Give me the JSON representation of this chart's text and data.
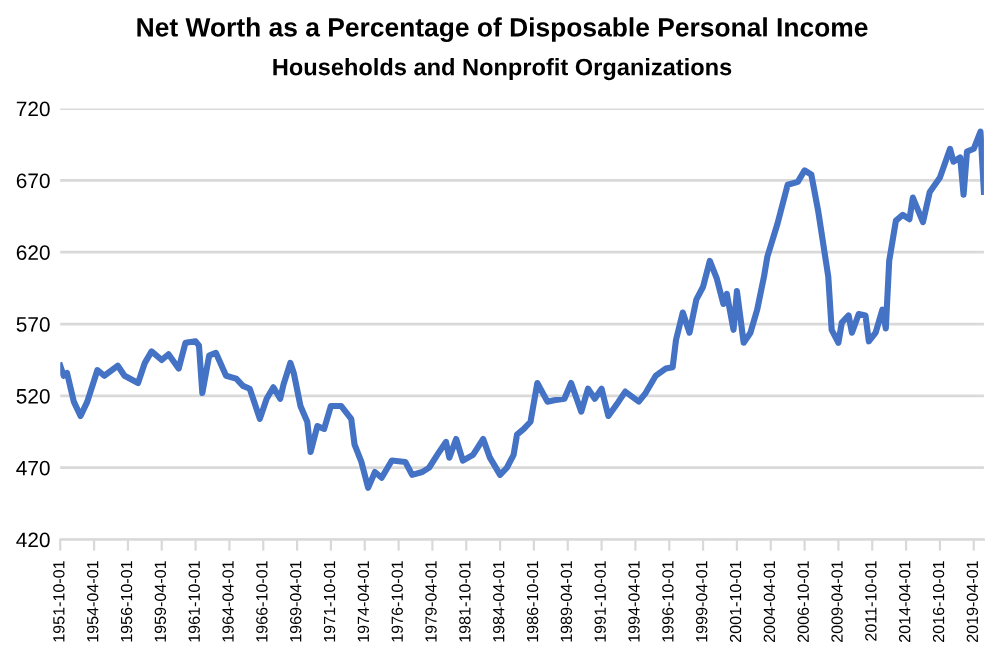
{
  "chart_data": {
    "type": "line",
    "title": "Net Worth as a Percentage of Disposable Personal Income",
    "subtitle": "Households and Nonprofit Organizations",
    "x": [
      "1951-10-01",
      "1952-01-01",
      "1952-04-01",
      "1952-10-01",
      "1953-04-01",
      "1953-10-01",
      "1954-07-01",
      "1955-01-01",
      "1956-01-01",
      "1956-07-01",
      "1957-07-01",
      "1958-01-01",
      "1958-07-01",
      "1959-04-01",
      "1959-10-01",
      "1960-07-01",
      "1961-01-01",
      "1961-10-01",
      "1962-01-01",
      "1962-04-01",
      "1962-10-01",
      "1963-04-01",
      "1964-01-01",
      "1964-10-01",
      "1965-04-01",
      "1965-10-01",
      "1966-01-01",
      "1966-07-01",
      "1967-01-01",
      "1967-07-01",
      "1968-01-01",
      "1968-04-01",
      "1968-10-01",
      "1969-01-01",
      "1969-07-01",
      "1970-01-01",
      "1970-04-01",
      "1970-10-01",
      "1971-04-01",
      "1971-10-01",
      "1972-07-01",
      "1973-04-01",
      "1973-07-01",
      "1974-01-01",
      "1974-07-01",
      "1975-01-01",
      "1975-07-01",
      "1976-04-01",
      "1977-04-01",
      "1977-10-01",
      "1978-07-01",
      "1979-01-01",
      "1979-10-01",
      "1980-04-01",
      "1980-07-01",
      "1981-01-01",
      "1981-07-01",
      "1982-04-01",
      "1983-01-01",
      "1983-07-01",
      "1984-04-01",
      "1984-10-01",
      "1985-04-01",
      "1985-07-01",
      "1986-01-01",
      "1986-07-01",
      "1987-01-01",
      "1987-10-01",
      "1988-04-01",
      "1989-01-01",
      "1989-07-01",
      "1990-04-01",
      "1990-10-01",
      "1991-04-01",
      "1991-10-01",
      "1992-04-01",
      "1993-01-01",
      "1993-07-01",
      "1994-07-01",
      "1995-01-01",
      "1995-10-01",
      "1996-07-01",
      "1997-01-01",
      "1997-04-01",
      "1997-10-01",
      "1998-04-01",
      "1998-10-01",
      "1999-04-01",
      "1999-10-01",
      "2000-04-01",
      "2000-10-01",
      "2001-01-01",
      "2001-07-01",
      "2001-10-01",
      "2002-04-01",
      "2002-10-01",
      "2003-04-01",
      "2003-10-01",
      "2004-01-01",
      "2004-10-01",
      "2005-07-01",
      "2006-04-01",
      "2006-10-01",
      "2007-04-01",
      "2007-10-01",
      "2008-07-01",
      "2008-10-01",
      "2009-04-01",
      "2009-07-01",
      "2010-01-01",
      "2010-04-01",
      "2010-10-01",
      "2011-04-01",
      "2011-07-01",
      "2012-01-01",
      "2012-07-01",
      "2012-10-01",
      "2013-01-01",
      "2013-07-01",
      "2014-01-01",
      "2014-07-01",
      "2014-10-01",
      "2015-07-01",
      "2016-01-01",
      "2016-10-01",
      "2017-07-01",
      "2017-10-01",
      "2018-04-01",
      "2018-07-01",
      "2018-10-01",
      "2019-04-01",
      "2019-10-01",
      "2020-01-01"
    ],
    "series": [
      {
        "color": "#4472c4",
        "values": [
          541,
          534,
          536,
          516,
          506,
          516,
          538,
          534,
          541,
          534,
          529,
          543,
          551,
          545,
          549,
          539,
          557,
          558,
          555,
          522,
          548,
          550,
          534,
          532,
          527,
          525,
          518,
          504,
          518,
          526,
          518,
          528,
          543,
          536,
          513,
          502,
          481,
          499,
          497,
          513,
          513,
          504,
          486,
          474,
          456,
          467,
          463,
          475,
          474,
          465,
          467,
          470,
          481,
          488,
          477,
          490,
          475,
          479,
          490,
          477,
          465,
          470,
          479,
          493,
          497,
          502,
          529,
          516,
          517,
          518,
          529,
          509,
          525,
          518,
          525,
          506,
          516,
          523,
          516,
          522,
          534,
          539,
          540,
          559,
          578,
          564,
          587,
          596,
          614,
          602,
          584,
          591,
          566,
          593,
          557,
          564,
          580,
          603,
          617,
          640,
          667,
          669,
          677,
          674,
          649,
          603,
          566,
          557,
          571,
          576,
          564,
          577,
          576,
          558,
          564,
          580,
          567,
          614,
          642,
          646,
          643,
          658,
          641,
          662,
          672,
          692,
          683,
          686,
          660,
          690,
          692,
          704,
          662
        ]
      }
    ],
    "xlim": [
      "1951-10-01",
      "2020-01-01"
    ],
    "xticks": [
      "1951-10-01",
      "1954-04-01",
      "1956-10-01",
      "1959-04-01",
      "1961-10-01",
      "1964-04-01",
      "1966-10-01",
      "1969-04-01",
      "1971-10-01",
      "1974-04-01",
      "1976-10-01",
      "1979-04-01",
      "1981-10-01",
      "1984-04-01",
      "1986-10-01",
      "1989-04-01",
      "1991-10-01",
      "1994-04-01",
      "1996-10-01",
      "1999-04-01",
      "2001-10-01",
      "2004-04-01",
      "2006-10-01",
      "2009-04-01",
      "2011-10-01",
      "2014-04-01",
      "2016-10-01",
      "2019-04-01"
    ],
    "ylim": [
      420,
      720
    ],
    "yticks": [
      420,
      470,
      520,
      570,
      620,
      670,
      720
    ],
    "grid": "y",
    "marker": "none",
    "line_style": "solid"
  }
}
